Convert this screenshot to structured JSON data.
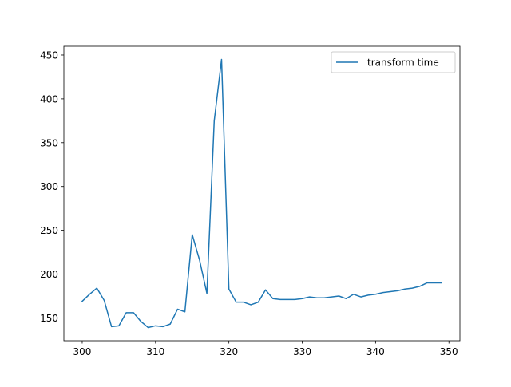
{
  "chart_data": {
    "type": "line",
    "title": "",
    "xlabel": "",
    "ylabel": "",
    "xlim": [
      297.5,
      351.5
    ],
    "ylim": [
      124,
      460
    ],
    "grid": false,
    "legend_position": "upper right",
    "x_ticks": [
      300,
      310,
      320,
      330,
      340,
      350
    ],
    "y_ticks": [
      150,
      200,
      250,
      300,
      350,
      400,
      450
    ],
    "series": [
      {
        "name": "transform time",
        "color": "#1f77b4",
        "x": [
          300,
          301,
          302,
          303,
          304,
          305,
          306,
          307,
          308,
          309,
          310,
          311,
          312,
          313,
          314,
          315,
          316,
          317,
          318,
          319,
          320,
          321,
          322,
          323,
          324,
          325,
          326,
          327,
          328,
          329,
          330,
          331,
          332,
          333,
          334,
          335,
          336,
          337,
          338,
          339,
          340,
          341,
          342,
          343,
          344,
          345,
          346,
          347,
          348,
          349
        ],
        "y": [
          169,
          177,
          184,
          170,
          140,
          141,
          156,
          156,
          146,
          139,
          141,
          140,
          143,
          160,
          157,
          245,
          216,
          178,
          375,
          445,
          183,
          168,
          168,
          165,
          168,
          182,
          172,
          171,
          171,
          171,
          172,
          174,
          173,
          173,
          174,
          175,
          172,
          177,
          174,
          176,
          177,
          179,
          180,
          181,
          183,
          184,
          186,
          190,
          190,
          190
        ]
      }
    ]
  }
}
